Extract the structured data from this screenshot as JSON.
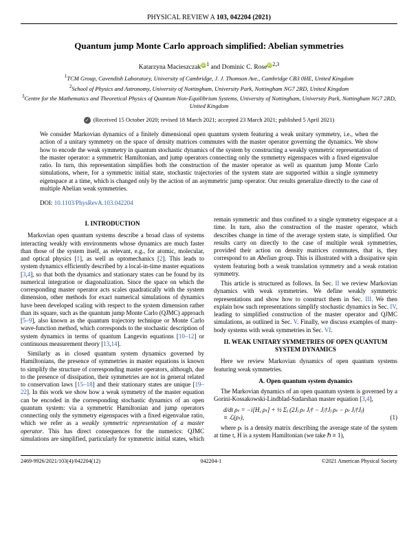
{
  "header": {
    "journal": "PHYSICAL REVIEW A",
    "volume_issue": "103, 042204 (2021)"
  },
  "title": "Quantum jump Monte Carlo approach simplified: Abelian symmetries",
  "authors_line": "Katarzyna Macieszczak  and Dominic C. Rose",
  "author1": "Katarzyna Macieszczak",
  "sup1": "1",
  "author2": "Dominic C. Rose",
  "sup2": "2,3",
  "affil1": "TCM Group, Cavendish Laboratory, University of Cambridge, J. J. Thomson Ave., Cambridge CB3 0HE, United Kingdom",
  "affil2": "School of Physics and Astronomy, University of Nottingham, University Park, Nottingham NG7 2RD, United Kingdom",
  "affil3": "Centre for the Mathematics and Theoretical Physics of Quantum Non-Equilibrium Systems, University of Nottingham, University Park, Nottingham NG7 2RD, United Kingdom",
  "received": "(Received 15 October 2020; revised 18 March 2021; accepted 23 March 2021; published 5 April 2021)",
  "abstract": "We consider Markovian dynamics of a finitely dimensional open quantum system featuring a weak unitary symmetry, i.e., when the action of a unitary symmetry on the space of density matrices commutes with the master operator governing the dynamics. We show how to encode the weak symmetry in quantum stochastic dynamics of the system by constructing a weakly symmetric representation of the master operator: a symmetric Hamiltonian, and jump operators connecting only the symmetry eigenspaces with a fixed eigenvalue ratio. In turn, this representation simplifies both the construction of the master operator as well as quantum jump Monte Carlo simulations, where, for a symmetric initial state, stochastic trajectories of the system state are supported within a single symmetry eigenspace at a time, which is changed only by the action of an asymmetric jump operator. Our results generalize directly to the case of multiple Abelian weak symmetries.",
  "doi_label": "DOI:",
  "doi_link": "10.1103/PhysRevA.103.042204",
  "sec1_head": "I. INTRODUCTION",
  "p1": "Markovian open quantum systems describe a broad class of systems interacting weakly with environments whose dynamics are much faster than those of the system itself, as relevant, e.g., for atomic, molecular, and optical physics [1], as well as optomechanics [2]. This leads to system dynamics efficiently described by a local-in-time master equations [3,4], so that both the dynamics and stationary states can be found by its numerical integration or diagonalization. Since the space on which the corresponding master operator acts scales quadratically with the system dimension, other methods for exact numerical simulations of dynamics have been developed scaling with respect to the system dimension rather than its square, such as the quantum jump Monte Carlo (QJMC) approach [5–9], also known as the quantum trajectory technique or Monte Carlo wave-function method, which corresponds to the stochastic description of system dynamics in terms of quantum Langevin equations [10–12] or continuous measurement theory [13,14].",
  "p2": "Similarly as in closed quantum system dynamics governed by Hamiltonians, the presence of symmetries in master equations is known to simplify the structure of corresponding master operators, although, due to the presence of dissipation, their symmetries are not in general related to conservation laws [15–18] and their stationary states are unique [19–22]. In this work we show how a weak symmetry of the master equation can be encoded in the corresponding stochastic dynamics of an open quantum system: via a symmetric Hamiltonian and jump operators connecting only the symmetry eigenspaces with a fixed eigenvalue ratio, which we refer as a weakly symmetric representation of a master operator. This has direct consequences for the numerics: QJMC simulations are simplified, particularly for symmetric initial states, which remain symmetric and thus confined to a single symmetry",
  "p3": "eigespace at a time. In turn, also the construction of the master operator, which describes change in time of the average system state, is simplified. Our results carry on directly to the case of multiple weak symmetries, provided their action on density matrices commutes, that is, they correspond to an Abelian group. This is illustrated with a dissipative spin system featuring both a weak translation symmetry and a weak rotation symmetry.",
  "p4": "This article is structured as follows. In Sec. II we review Markovian dynamics with weak symmetries. We define weakly symmetric representations and show how to construct them in Sec. III. We then explain how such representations simplify stochastic dynamics in Sec. IV, leading to simplified construction of the master operator and QJMC simulations, as outlined in Sec. V. Finally, we discuss examples of many-body systems with weak symmetries in Sec. VI.",
  "sec2_head": "II. WEAK UNITARY SYMMETRIES OF OPEN QUANTUM SYSTEM DYNAMICS",
  "p5": "Here we review Markovian dynamics of open quantum systems featuring weak symmetries.",
  "sub_a": "A. Open quantum system dynamics",
  "p6": "The Markovian dynamics of an open quantum system is governed by a Gorini-Kossakowski-Lindblad-Sudarshan master equation [3,4],",
  "eq_text": "d/dt ρₜ = −i[H, ρₜ] + ½ Σⱼ (2Jⱼ ρₜ Jⱼ† − Jⱼ†Jⱼ ρₜ − ρₜ Jⱼ†Jⱼ)",
  "eq_text2": "≡ ℒ(ρₜ),",
  "eq_num": "(1)",
  "p7": "where ρₜ is a density matrix describing the average state of the system at time t, H is a system Hamiltonian (we take ℏ ≡ 1),",
  "footer": {
    "left": "2469-9926/2021/103(4)/042204(12)",
    "center": "042204-1",
    "right": "©2021 American Physical Society"
  }
}
